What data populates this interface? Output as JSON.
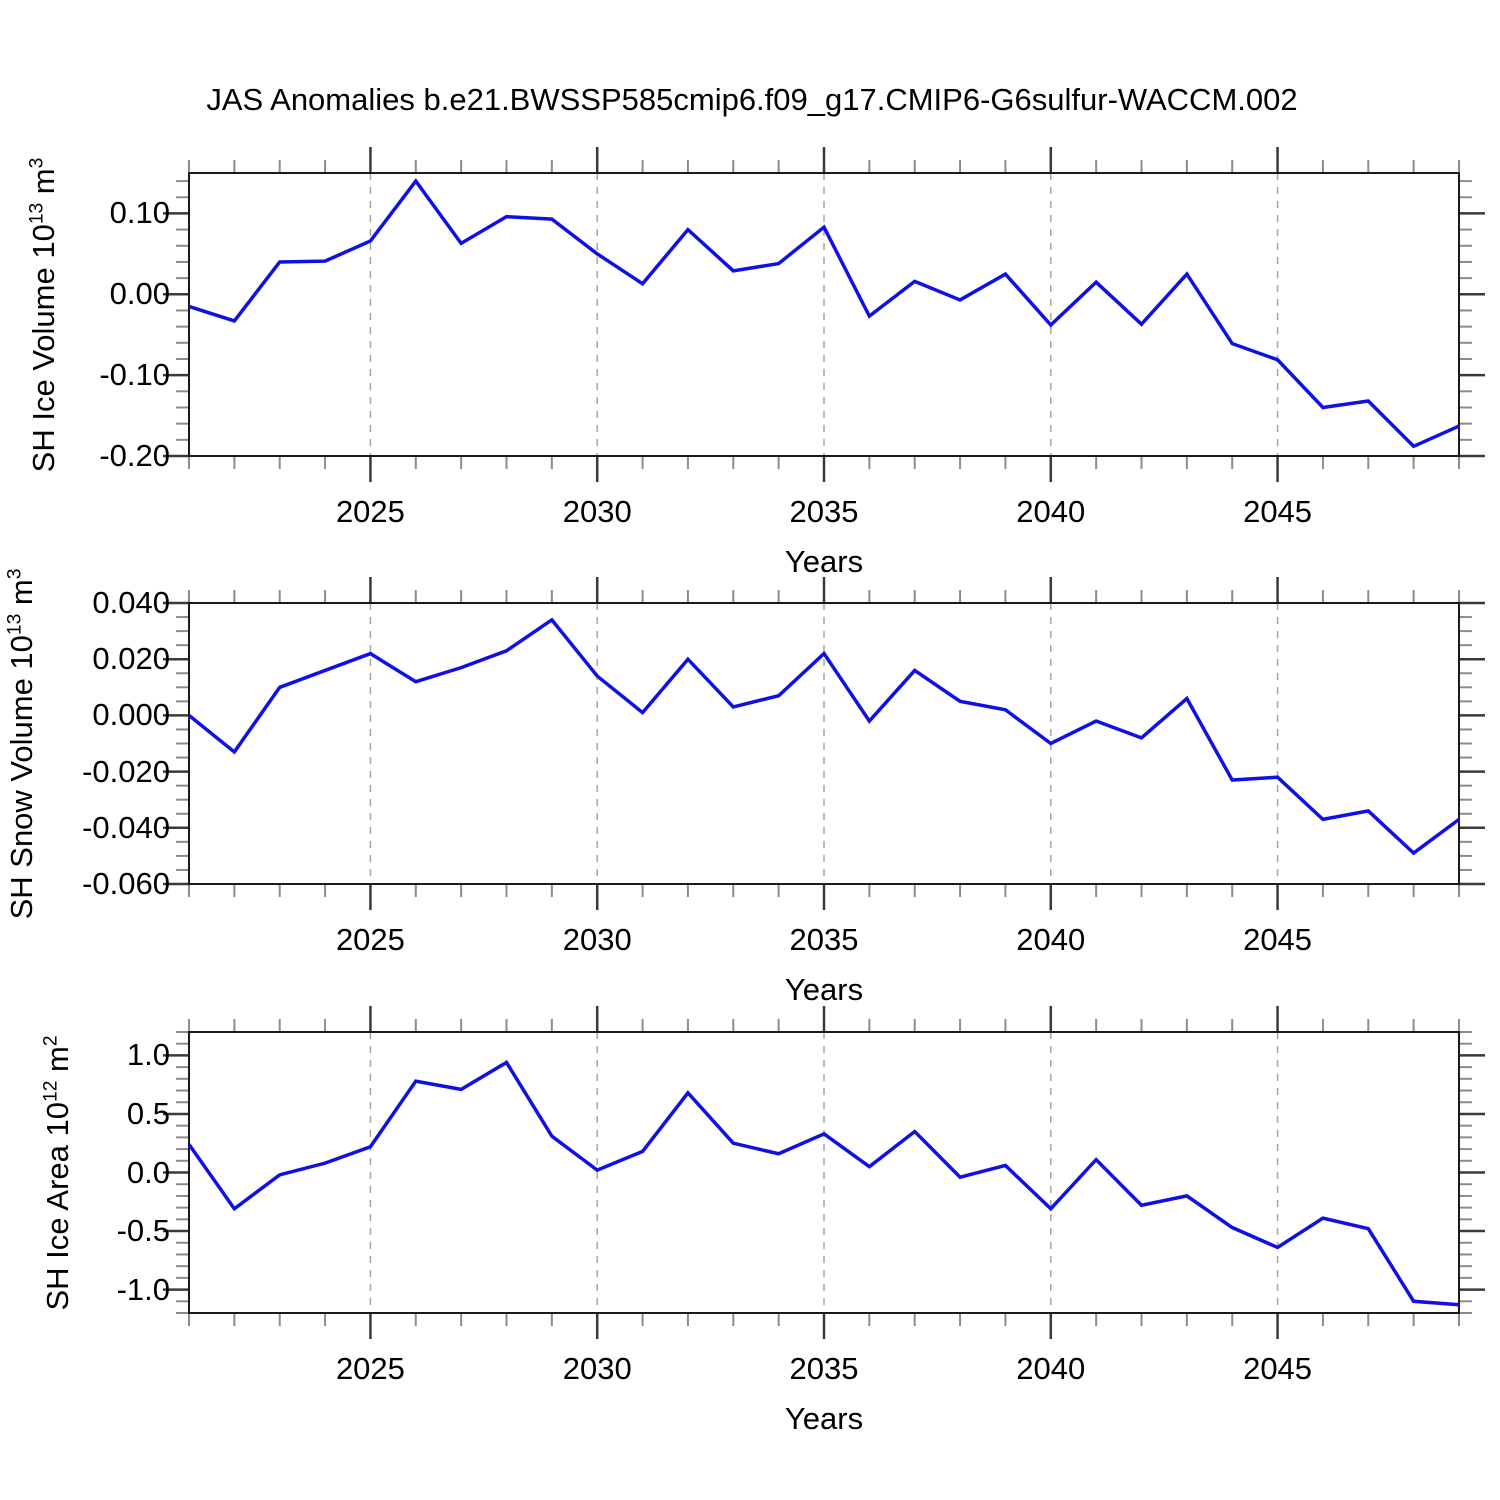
{
  "title": "JAS Anomalies b.e21.BWSSP585cmip6.f09_g17.CMIP6-G6sulfur-WACCM.002",
  "x_axis": {
    "label": "Years",
    "start": 2021,
    "end": 2049,
    "major_ticks": [
      2025,
      2030,
      2035,
      2040,
      2045
    ],
    "years": [
      2021,
      2022,
      2023,
      2024,
      2025,
      2026,
      2027,
      2028,
      2029,
      2030,
      2031,
      2032,
      2033,
      2034,
      2035,
      2036,
      2037,
      2038,
      2039,
      2040,
      2041,
      2042,
      2043,
      2044,
      2045,
      2046,
      2047,
      2048,
      2049
    ]
  },
  "style": {
    "line_color": "#0f0fe6",
    "frame_color": "#1a1a1a",
    "major_tick_color": "#3a3a3a",
    "minor_tick_color": "#8c8c8c",
    "grid_color": "#a6a6a6",
    "background": "#ffffff"
  },
  "chart_data": [
    {
      "type": "line",
      "ylabel": {
        "main": "SH Ice Volume 10",
        "exp": "13",
        "unit": " m",
        "unit_exp": "3"
      },
      "xlabel": "Years",
      "ylim": [
        -0.2,
        0.15
      ],
      "y_minor_step": 0.02,
      "y_major": [
        {
          "value": 0.1,
          "label": "0.10"
        },
        {
          "value": 0.0,
          "label": "0.00"
        },
        {
          "value": -0.1,
          "label": "-0.10"
        },
        {
          "value": -0.2,
          "label": "-0.20"
        }
      ],
      "values": [
        -0.015,
        -0.033,
        0.04,
        0.041,
        0.066,
        0.14,
        0.063,
        0.096,
        0.093,
        0.05,
        0.013,
        0.08,
        0.029,
        0.038,
        0.083,
        -0.027,
        0.016,
        -0.007,
        0.025,
        -0.038,
        0.015,
        -0.037,
        0.025,
        -0.061,
        -0.081,
        -0.14,
        -0.132,
        -0.188,
        -0.163
      ]
    },
    {
      "type": "line",
      "ylabel": {
        "main": "SH Snow Volume 10",
        "exp": "13",
        "unit": " m",
        "unit_exp": "3"
      },
      "xlabel": "Years",
      "ylim": [
        -0.06,
        0.04
      ],
      "y_minor_step": 0.005,
      "y_major": [
        {
          "value": 0.04,
          "label": "0.040"
        },
        {
          "value": 0.02,
          "label": "0.020"
        },
        {
          "value": 0.0,
          "label": "0.000"
        },
        {
          "value": -0.02,
          "label": "-0.020"
        },
        {
          "value": -0.04,
          "label": "-0.040"
        },
        {
          "value": -0.06,
          "label": "-0.060"
        }
      ],
      "values": [
        0.0,
        -0.013,
        0.01,
        0.016,
        0.022,
        0.012,
        0.017,
        0.023,
        0.034,
        0.014,
        0.001,
        0.02,
        0.003,
        0.007,
        0.022,
        -0.002,
        0.016,
        0.005,
        0.002,
        -0.01,
        -0.002,
        -0.008,
        0.006,
        -0.023,
        -0.022,
        -0.037,
        -0.034,
        -0.049,
        -0.037
      ]
    },
    {
      "type": "line",
      "ylabel": {
        "main": "SH Ice Area 10",
        "exp": "12",
        "unit": " m",
        "unit_exp": "2"
      },
      "xlabel": "Years",
      "ylim": [
        -1.2,
        1.2
      ],
      "y_minor_step": 0.1,
      "y_major": [
        {
          "value": 1.0,
          "label": "1.0"
        },
        {
          "value": 0.5,
          "label": "0.5"
        },
        {
          "value": 0.0,
          "label": "0.0"
        },
        {
          "value": -0.5,
          "label": "-0.5"
        },
        {
          "value": -1.0,
          "label": "-1.0"
        }
      ],
      "values": [
        0.24,
        -0.31,
        -0.02,
        0.08,
        0.22,
        0.78,
        0.71,
        0.94,
        0.31,
        0.02,
        0.18,
        0.68,
        0.25,
        0.16,
        0.33,
        0.05,
        0.35,
        -0.04,
        0.06,
        -0.31,
        0.11,
        -0.28,
        -0.2,
        -0.47,
        -0.64,
        -0.39,
        -0.48,
        -1.1,
        -1.13
      ]
    }
  ]
}
